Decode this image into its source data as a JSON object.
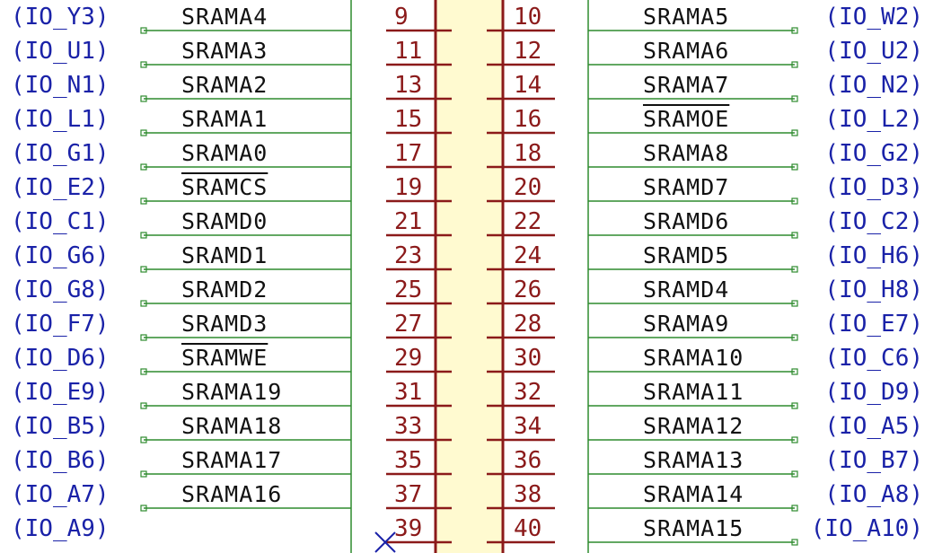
{
  "connector": {
    "colors": {
      "wire": "#2e8b2e",
      "pin": "#8b1a1a",
      "body_fill": "#fffad0",
      "io_text": "#1a22a8",
      "net_text": "#111111",
      "no_connect": "#1a22a8"
    },
    "rows": [
      {
        "left_io": "(IO_Y3)",
        "left_net": "SRAMA4",
        "left_overbar": false,
        "left_pin": "9",
        "right_pin": "10",
        "right_net": "SRAMA5",
        "right_overbar": false,
        "right_io": "(IO_W2)"
      },
      {
        "left_io": "(IO_U1)",
        "left_net": "SRAMA3",
        "left_overbar": false,
        "left_pin": "11",
        "right_pin": "12",
        "right_net": "SRAMA6",
        "right_overbar": false,
        "right_io": "(IO_U2)"
      },
      {
        "left_io": "(IO_N1)",
        "left_net": "SRAMA2",
        "left_overbar": false,
        "left_pin": "13",
        "right_pin": "14",
        "right_net": "SRAMA7",
        "right_overbar": false,
        "right_io": "(IO_N2)"
      },
      {
        "left_io": "(IO_L1)",
        "left_net": "SRAMA1",
        "left_overbar": false,
        "left_pin": "15",
        "right_pin": "16",
        "right_net": "SRAMOE",
        "right_overbar": true,
        "right_io": "(IO_L2)"
      },
      {
        "left_io": "(IO_G1)",
        "left_net": "SRAMA0",
        "left_overbar": false,
        "left_pin": "17",
        "right_pin": "18",
        "right_net": "SRAMA8",
        "right_overbar": false,
        "right_io": "(IO_G2)"
      },
      {
        "left_io": "(IO_E2)",
        "left_net": "SRAMCS",
        "left_overbar": true,
        "left_pin": "19",
        "right_pin": "20",
        "right_net": "SRAMD7",
        "right_overbar": false,
        "right_io": "(IO_D3)"
      },
      {
        "left_io": "(IO_C1)",
        "left_net": "SRAMD0",
        "left_overbar": false,
        "left_pin": "21",
        "right_pin": "22",
        "right_net": "SRAMD6",
        "right_overbar": false,
        "right_io": "(IO_C2)"
      },
      {
        "left_io": "(IO_G6)",
        "left_net": "SRAMD1",
        "left_overbar": false,
        "left_pin": "23",
        "right_pin": "24",
        "right_net": "SRAMD5",
        "right_overbar": false,
        "right_io": "(IO_H6)"
      },
      {
        "left_io": "(IO_G8)",
        "left_net": "SRAMD2",
        "left_overbar": false,
        "left_pin": "25",
        "right_pin": "26",
        "right_net": "SRAMD4",
        "right_overbar": false,
        "right_io": "(IO_H8)"
      },
      {
        "left_io": "(IO_F7)",
        "left_net": "SRAMD3",
        "left_overbar": false,
        "left_pin": "27",
        "right_pin": "28",
        "right_net": "SRAMA9",
        "right_overbar": false,
        "right_io": "(IO_E7)"
      },
      {
        "left_io": "(IO_D6)",
        "left_net": "SRAMWE",
        "left_overbar": true,
        "left_pin": "29",
        "right_pin": "30",
        "right_net": "SRAMA10",
        "right_overbar": false,
        "right_io": "(IO_C6)"
      },
      {
        "left_io": "(IO_E9)",
        "left_net": "SRAMA19",
        "left_overbar": false,
        "left_pin": "31",
        "right_pin": "32",
        "right_net": "SRAMA11",
        "right_overbar": false,
        "right_io": "(IO_D9)"
      },
      {
        "left_io": "(IO_B5)",
        "left_net": "SRAMA18",
        "left_overbar": false,
        "left_pin": "33",
        "right_pin": "34",
        "right_net": "SRAMA12",
        "right_overbar": false,
        "right_io": "(IO_A5)"
      },
      {
        "left_io": "(IO_B6)",
        "left_net": "SRAMA17",
        "left_overbar": false,
        "left_pin": "35",
        "right_pin": "36",
        "right_net": "SRAMA13",
        "right_overbar": false,
        "right_io": "(IO_B7)"
      },
      {
        "left_io": "(IO_A7)",
        "left_net": "SRAMA16",
        "left_overbar": false,
        "left_pin": "37",
        "right_pin": "38",
        "right_net": "SRAMA14",
        "right_overbar": false,
        "right_io": "(IO_A8)"
      },
      {
        "left_io": "(IO_A9)",
        "left_net": "",
        "left_overbar": false,
        "left_no_connect": true,
        "left_pin": "39",
        "right_pin": "40",
        "right_net": "SRAMA15",
        "right_overbar": false,
        "right_io": "(IO_A10)"
      }
    ]
  }
}
